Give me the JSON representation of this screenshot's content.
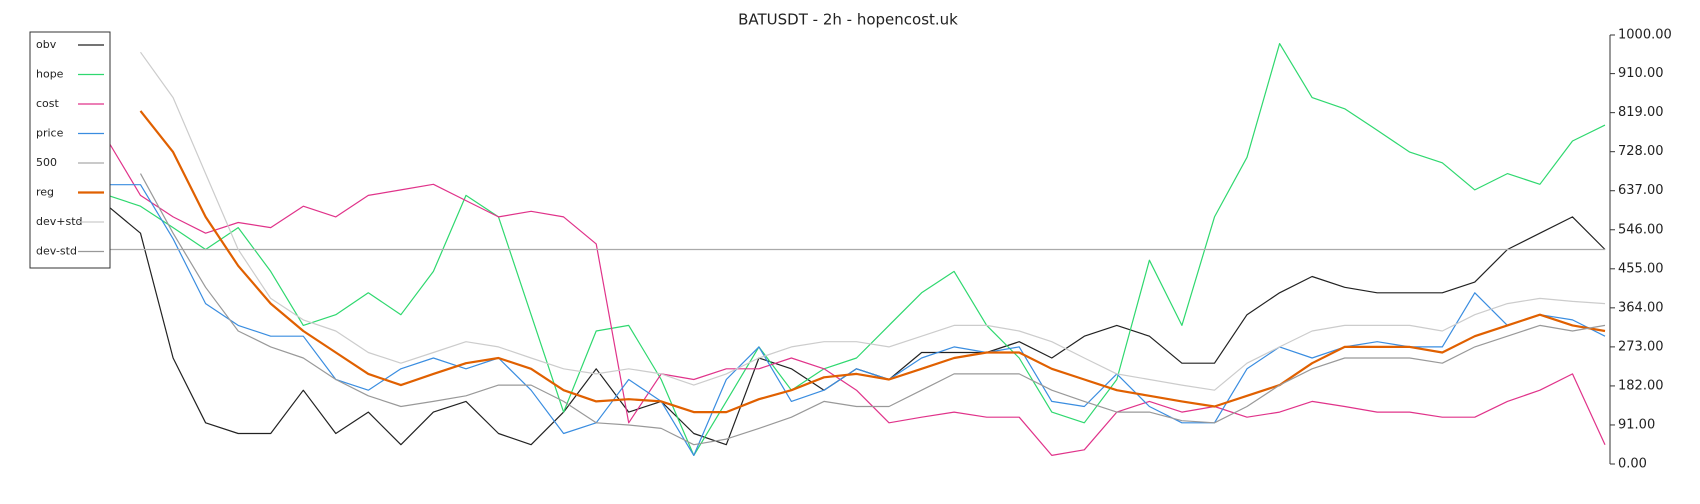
{
  "chart_data": {
    "type": "line",
    "title": "BATUSDT - 2h - hopencost.uk",
    "ylim": [
      0,
      1000
    ],
    "yticks": [
      {
        "value": 0,
        "label": "0.00"
      },
      {
        "value": 91,
        "label": "91.00"
      },
      {
        "value": 182,
        "label": "182.00"
      },
      {
        "value": 273,
        "label": "273.00"
      },
      {
        "value": 364,
        "label": "364.00"
      },
      {
        "value": 455,
        "label": "455.00"
      },
      {
        "value": 546,
        "label": "546.00"
      },
      {
        "value": 637,
        "label": "637.00"
      },
      {
        "value": 728,
        "label": "728.00"
      },
      {
        "value": 819,
        "label": "819.00"
      },
      {
        "value": 910,
        "label": "910.00"
      },
      {
        "value": 1000,
        "label": "1000.00"
      }
    ],
    "legend": "upper left",
    "series": [
      {
        "name": "obv",
        "color": "#222222",
        "width": 1.2,
        "values": [
          601,
          538,
          247,
          96,
          71,
          71,
          172,
          71,
          121,
          45,
          121,
          146,
          71,
          45,
          121,
          222,
          121,
          146,
          71,
          45,
          247,
          222,
          172,
          222,
          197,
          260,
          260,
          260,
          285,
          247,
          298,
          323,
          298,
          235,
          235,
          348,
          399,
          437,
          412,
          399,
          399,
          399,
          424,
          500,
          538,
          576,
          500
        ]
      },
      {
        "name": "hope",
        "color": "#2fd86f",
        "width": 1.2,
        "values": [
          626,
          601,
          551,
          500,
          551,
          449,
          323,
          348,
          399,
          348,
          449,
          626,
          576,
          348,
          121,
          310,
          323,
          197,
          20,
          146,
          273,
          172,
          222,
          247,
          323,
          399,
          449,
          323,
          247,
          121,
          96,
          197,
          475,
          323,
          576,
          715,
          980,
          854,
          828,
          778,
          727,
          702,
          639,
          677,
          652,
          753,
          790
        ]
      },
      {
        "name": "cost",
        "color": "#e0338a",
        "width": 1.2,
        "values": [
          753,
          626,
          576,
          538,
          563,
          551,
          601,
          576,
          626,
          639,
          652,
          614,
          576,
          589,
          576,
          513,
          96,
          210,
          197,
          222,
          222,
          247,
          222,
          172,
          96,
          109,
          121,
          109,
          109,
          20,
          33,
          121,
          146,
          121,
          134,
          109,
          121,
          146,
          134,
          121,
          121,
          109,
          109,
          146,
          172,
          210,
          45
        ]
      },
      {
        "name": "price",
        "color": "#3a8de0",
        "width": 1.2,
        "values": [
          651,
          651,
          525,
          374,
          323,
          298,
          298,
          197,
          172,
          222,
          247,
          222,
          247,
          172,
          71,
          96,
          197,
          146,
          20,
          197,
          273,
          146,
          172,
          222,
          197,
          247,
          273,
          260,
          273,
          146,
          134,
          210,
          134,
          96,
          96,
          222,
          273,
          247,
          273,
          285,
          273,
          273,
          399,
          323,
          348,
          336,
          298
        ]
      },
      {
        "name": "500",
        "color": "#aaaaaa",
        "width": 1.2,
        "values": [
          500,
          500,
          500,
          500,
          500,
          500,
          500,
          500,
          500,
          500,
          500,
          500,
          500,
          500,
          500,
          500,
          500,
          500,
          500,
          500,
          500,
          500,
          500,
          500,
          500,
          500,
          500,
          500,
          500,
          500,
          500,
          500,
          500,
          500,
          500,
          500,
          500,
          500,
          500,
          500,
          500,
          500,
          500,
          500,
          500,
          500,
          500
        ]
      },
      {
        "name": "reg",
        "color": "#e06000",
        "width": 2.2,
        "values": [
          null,
          823,
          727,
          576,
          462,
          374,
          310,
          260,
          210,
          184,
          210,
          235,
          247,
          222,
          172,
          146,
          151,
          146,
          121,
          121,
          151,
          172,
          202,
          210,
          197,
          222,
          247,
          260,
          260,
          222,
          197,
          172,
          159,
          146,
          134,
          159,
          184,
          235,
          273,
          273,
          273,
          260,
          298,
          323,
          348,
          323,
          310
        ]
      },
      {
        "name": "dev+std",
        "color": "#cccccc",
        "width": 1.2,
        "values": [
          null,
          960,
          854,
          677,
          500,
          386,
          336,
          310,
          260,
          235,
          260,
          285,
          273,
          247,
          222,
          210,
          222,
          210,
          184,
          210,
          247,
          273,
          285,
          285,
          273,
          298,
          323,
          323,
          310,
          285,
          247,
          210,
          197,
          184,
          172,
          235,
          273,
          310,
          323,
          323,
          323,
          310,
          348,
          374,
          386,
          379,
          374
        ]
      },
      {
        "name": "dev-std",
        "color": "#999999",
        "width": 1.2,
        "values": [
          null,
          677,
          538,
          412,
          310,
          273,
          247,
          197,
          159,
          134,
          146,
          159,
          184,
          184,
          146,
          96,
          91,
          83,
          45,
          58,
          83,
          109,
          146,
          134,
          134,
          172,
          210,
          210,
          210,
          172,
          146,
          121,
          121,
          101,
          96,
          134,
          184,
          222,
          247,
          247,
          247,
          235,
          273,
          298,
          323,
          310,
          323
        ]
      }
    ]
  }
}
